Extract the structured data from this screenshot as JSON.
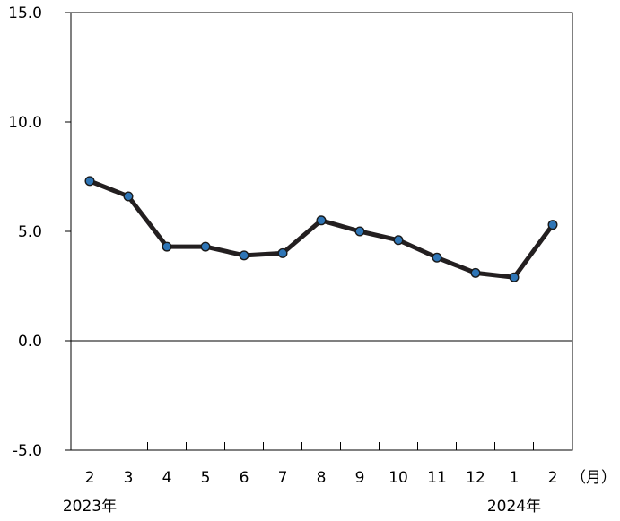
{
  "chart_data": {
    "type": "line",
    "title": "",
    "xlabel": "",
    "ylabel": "",
    "x_unit_label": "（月）",
    "categories": [
      "2",
      "3",
      "4",
      "5",
      "6",
      "7",
      "8",
      "9",
      "10",
      "11",
      "12",
      "1",
      "2"
    ],
    "year_labels": [
      {
        "index": 0,
        "label": "2023年"
      },
      {
        "index": 11,
        "label": "2024年"
      }
    ],
    "ylim": [
      -5.0,
      15.0
    ],
    "yticks": [
      "15.0",
      "10.0",
      "5.0",
      "0.0",
      "-5.0"
    ],
    "ytick_values": [
      15,
      10,
      5,
      0,
      -5
    ],
    "grid": false,
    "zero_line": true,
    "series": [
      {
        "values": [
          7.3,
          6.6,
          4.3,
          4.3,
          3.9,
          4.0,
          5.5,
          5.0,
          4.6,
          3.8,
          3.1,
          2.9,
          5.3
        ],
        "line_color": "#231f20",
        "marker_color": "#2e75b6",
        "marker_edge": "#1a1a1a"
      }
    ]
  }
}
